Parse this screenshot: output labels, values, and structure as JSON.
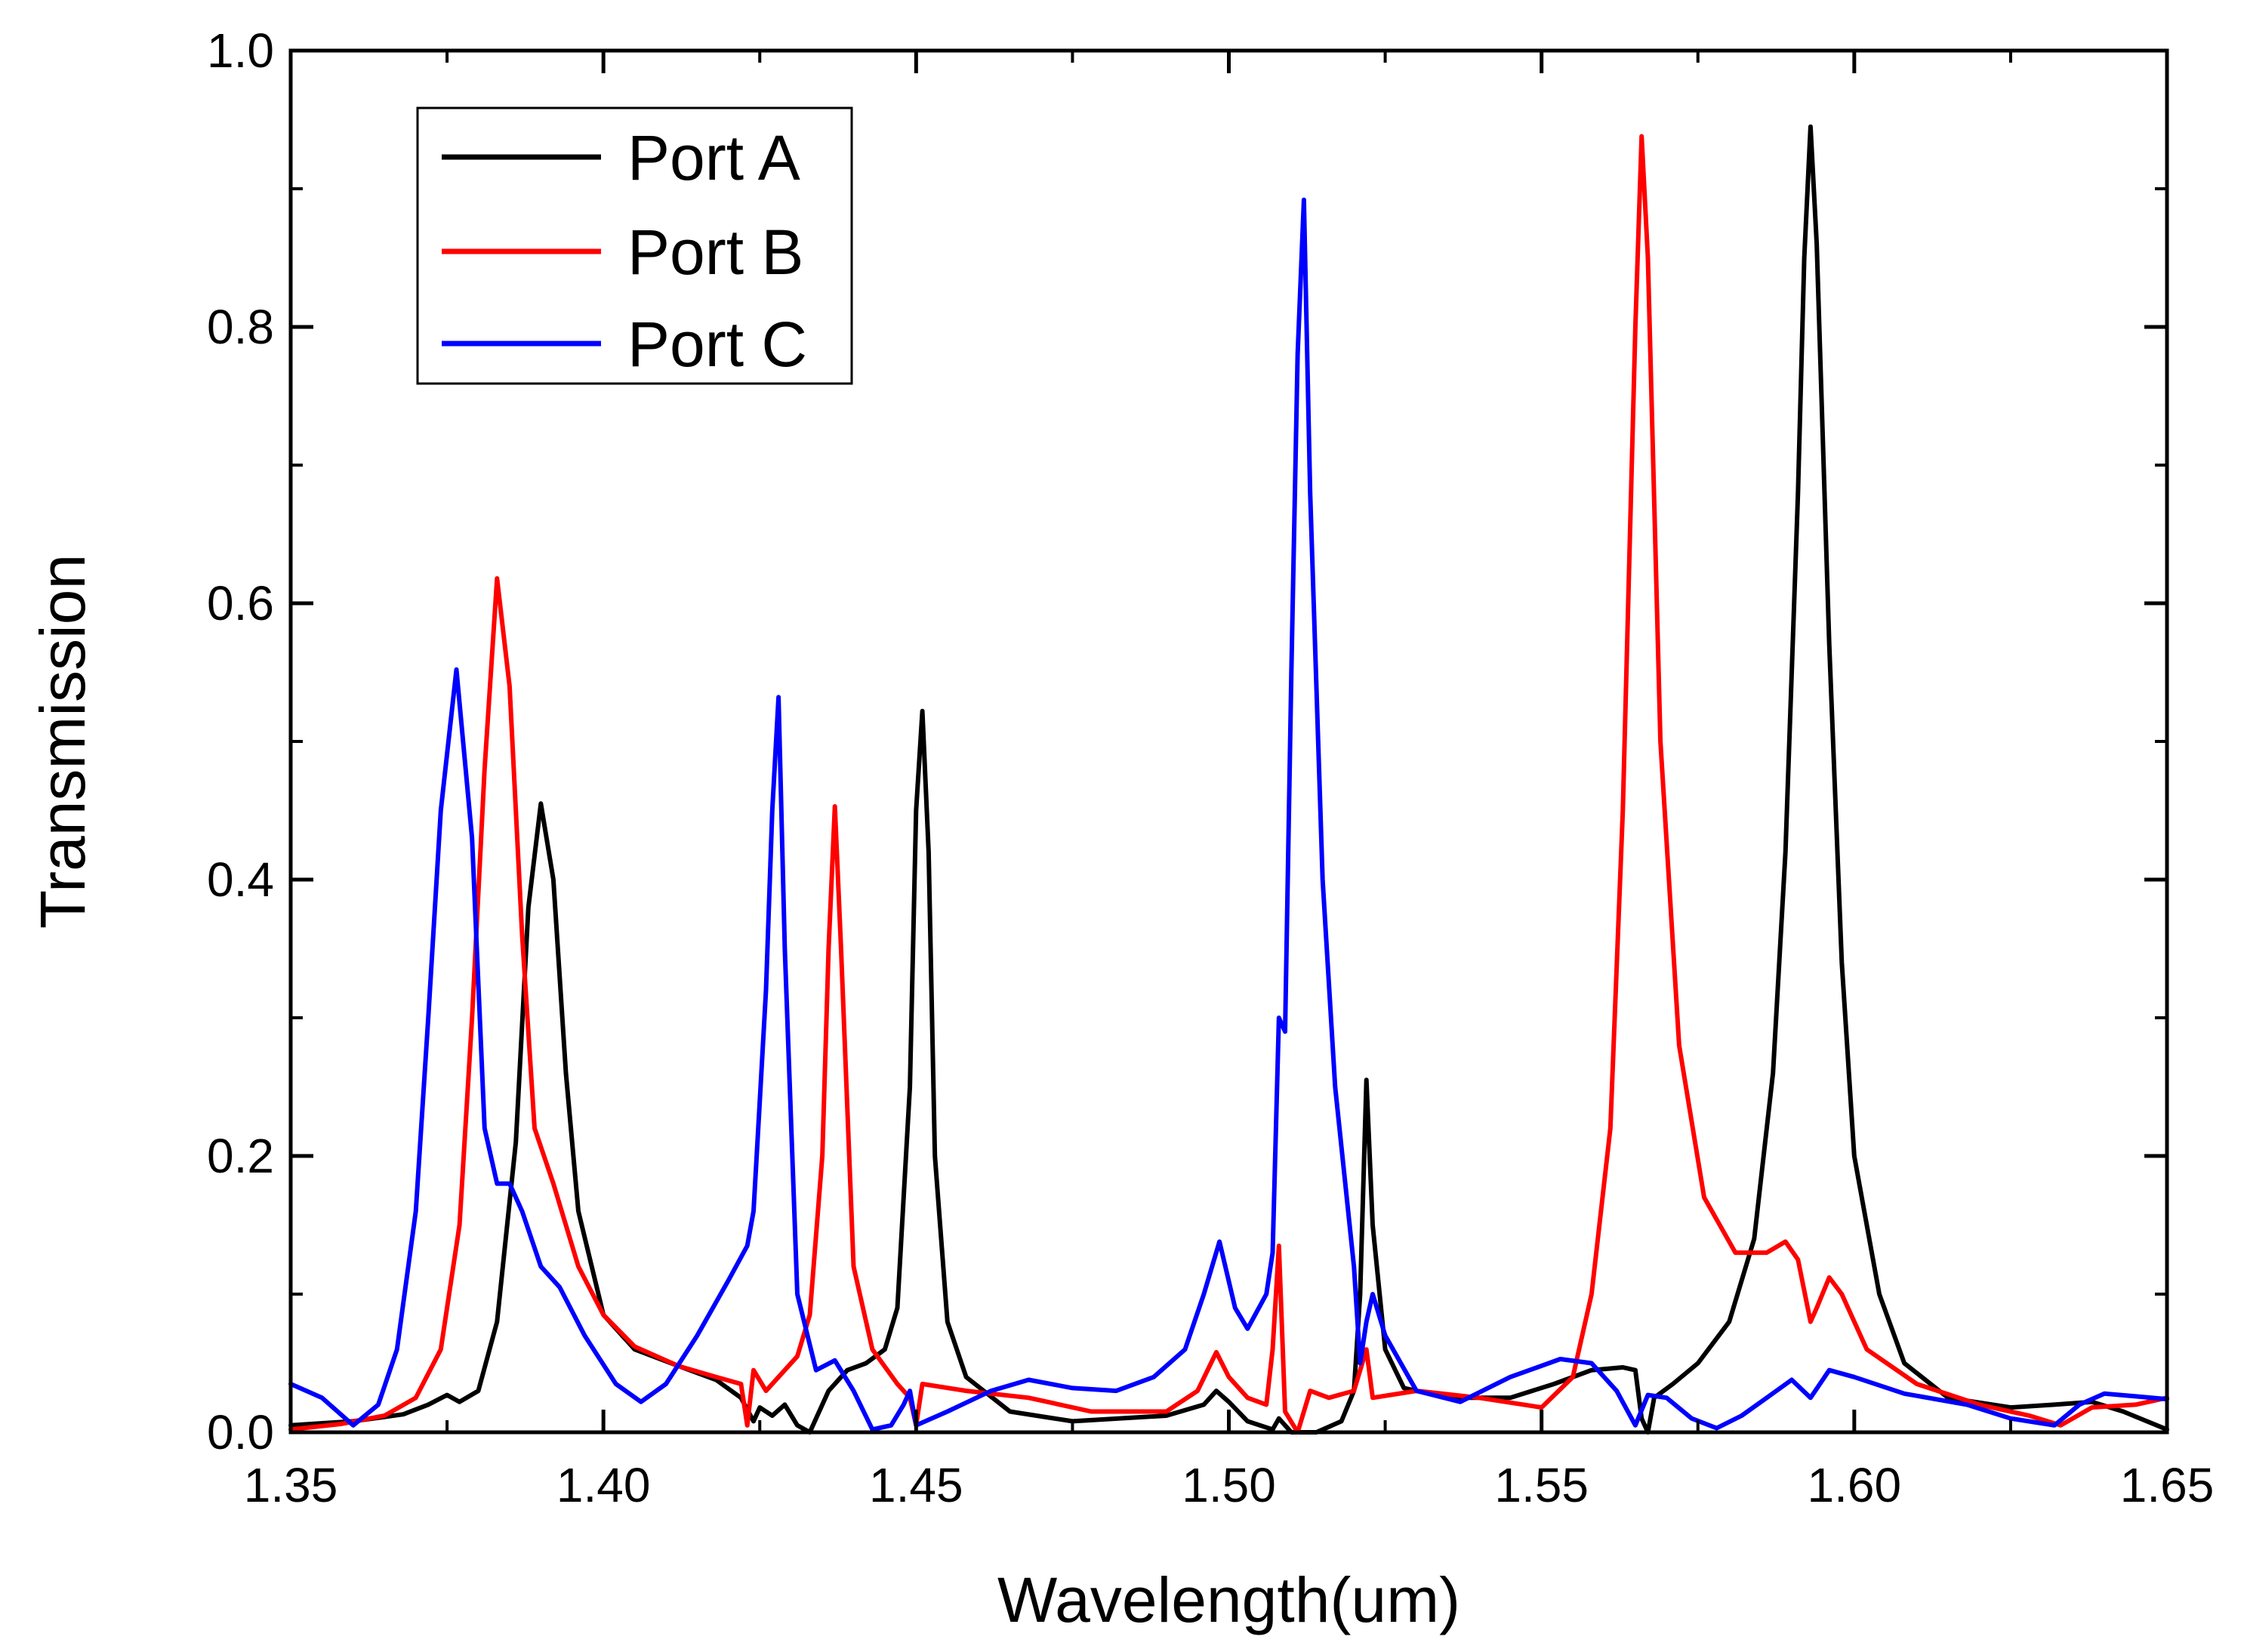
{
  "chart_data": {
    "type": "line",
    "title": "",
    "xlabel": "Wavelength(um)",
    "ylabel": "Transmission",
    "xlim": [
      1.35,
      1.65
    ],
    "ylim": [
      0.0,
      1.0
    ],
    "grid": false,
    "legend_position": "top-left",
    "x_ticks": [
      "1.35",
      "1.40",
      "1.45",
      "1.50",
      "1.55",
      "1.60",
      "1.65"
    ],
    "y_ticks": [
      "0.0",
      "0.2",
      "0.4",
      "0.6",
      "0.8",
      "1.0"
    ],
    "x_tick_values": [
      1.35,
      1.4,
      1.45,
      1.5,
      1.55,
      1.6,
      1.65
    ],
    "y_tick_values": [
      0.0,
      0.2,
      0.4,
      0.6,
      0.8,
      1.0
    ],
    "series": [
      {
        "name": "Port A",
        "color": "#000000",
        "points": [
          [
            1.35,
            0.005
          ],
          [
            1.36,
            0.008
          ],
          [
            1.368,
            0.013
          ],
          [
            1.372,
            0.02
          ],
          [
            1.375,
            0.027
          ],
          [
            1.377,
            0.022
          ],
          [
            1.38,
            0.03
          ],
          [
            1.383,
            0.08
          ],
          [
            1.386,
            0.21
          ],
          [
            1.388,
            0.38
          ],
          [
            1.39,
            0.455
          ],
          [
            1.392,
            0.4
          ],
          [
            1.394,
            0.26
          ],
          [
            1.396,
            0.16
          ],
          [
            1.4,
            0.085
          ],
          [
            1.405,
            0.06
          ],
          [
            1.412,
            0.048
          ],
          [
            1.418,
            0.038
          ],
          [
            1.422,
            0.025
          ],
          [
            1.424,
            0.008
          ],
          [
            1.425,
            0.018
          ],
          [
            1.427,
            0.012
          ],
          [
            1.429,
            0.02
          ],
          [
            1.431,
            0.005
          ],
          [
            1.433,
            0.0
          ],
          [
            1.436,
            0.03
          ],
          [
            1.439,
            0.045
          ],
          [
            1.442,
            0.05
          ],
          [
            1.445,
            0.06
          ],
          [
            1.447,
            0.09
          ],
          [
            1.449,
            0.25
          ],
          [
            1.45,
            0.45
          ],
          [
            1.451,
            0.522
          ],
          [
            1.452,
            0.42
          ],
          [
            1.453,
            0.2
          ],
          [
            1.455,
            0.08
          ],
          [
            1.458,
            0.04
          ],
          [
            1.465,
            0.015
          ],
          [
            1.475,
            0.008
          ],
          [
            1.49,
            0.012
          ],
          [
            1.496,
            0.02
          ],
          [
            1.498,
            0.03
          ],
          [
            1.5,
            0.022
          ],
          [
            1.503,
            0.008
          ],
          [
            1.507,
            0.002
          ],
          [
            1.508,
            0.01
          ],
          [
            1.51,
            0.0
          ],
          [
            1.514,
            0.0
          ],
          [
            1.518,
            0.008
          ],
          [
            1.52,
            0.03
          ],
          [
            1.521,
            0.1
          ],
          [
            1.522,
            0.255
          ],
          [
            1.523,
            0.15
          ],
          [
            1.525,
            0.06
          ],
          [
            1.528,
            0.032
          ],
          [
            1.535,
            0.025
          ],
          [
            1.545,
            0.025
          ],
          [
            1.552,
            0.035
          ],
          [
            1.558,
            0.045
          ],
          [
            1.563,
            0.047
          ],
          [
            1.565,
            0.045
          ],
          [
            1.566,
            0.01
          ],
          [
            1.567,
            0.0
          ],
          [
            1.568,
            0.025
          ],
          [
            1.571,
            0.035
          ],
          [
            1.575,
            0.05
          ],
          [
            1.58,
            0.08
          ],
          [
            1.584,
            0.14
          ],
          [
            1.587,
            0.26
          ],
          [
            1.589,
            0.42
          ],
          [
            1.591,
            0.68
          ],
          [
            1.592,
            0.85
          ],
          [
            1.593,
            0.945
          ],
          [
            1.594,
            0.86
          ],
          [
            1.596,
            0.57
          ],
          [
            1.598,
            0.34
          ],
          [
            1.6,
            0.2
          ],
          [
            1.604,
            0.1
          ],
          [
            1.608,
            0.05
          ],
          [
            1.615,
            0.025
          ],
          [
            1.625,
            0.018
          ],
          [
            1.632,
            0.02
          ],
          [
            1.638,
            0.022
          ],
          [
            1.643,
            0.015
          ],
          [
            1.65,
            0.002
          ]
        ]
      },
      {
        "name": "Port B",
        "color": "#ff0000",
        "points": [
          [
            1.35,
            0.002
          ],
          [
            1.358,
            0.006
          ],
          [
            1.365,
            0.012
          ],
          [
            1.37,
            0.025
          ],
          [
            1.374,
            0.06
          ],
          [
            1.377,
            0.15
          ],
          [
            1.379,
            0.3
          ],
          [
            1.381,
            0.48
          ],
          [
            1.383,
            0.618
          ],
          [
            1.385,
            0.54
          ],
          [
            1.387,
            0.36
          ],
          [
            1.389,
            0.22
          ],
          [
            1.392,
            0.18
          ],
          [
            1.396,
            0.12
          ],
          [
            1.4,
            0.085
          ],
          [
            1.405,
            0.062
          ],
          [
            1.412,
            0.048
          ],
          [
            1.418,
            0.04
          ],
          [
            1.422,
            0.035
          ],
          [
            1.423,
            0.005
          ],
          [
            1.424,
            0.045
          ],
          [
            1.426,
            0.03
          ],
          [
            1.428,
            0.04
          ],
          [
            1.431,
            0.055
          ],
          [
            1.433,
            0.085
          ],
          [
            1.435,
            0.2
          ],
          [
            1.436,
            0.35
          ],
          [
            1.437,
            0.453
          ],
          [
            1.438,
            0.35
          ],
          [
            1.44,
            0.12
          ],
          [
            1.443,
            0.06
          ],
          [
            1.447,
            0.035
          ],
          [
            1.449,
            0.025
          ],
          [
            1.45,
            0.005
          ],
          [
            1.451,
            0.035
          ],
          [
            1.458,
            0.03
          ],
          [
            1.468,
            0.025
          ],
          [
            1.478,
            0.015
          ],
          [
            1.49,
            0.015
          ],
          [
            1.495,
            0.03
          ],
          [
            1.498,
            0.058
          ],
          [
            1.5,
            0.04
          ],
          [
            1.503,
            0.025
          ],
          [
            1.506,
            0.02
          ],
          [
            1.507,
            0.06
          ],
          [
            1.508,
            0.135
          ],
          [
            1.509,
            0.015
          ],
          [
            1.511,
            0.0
          ],
          [
            1.513,
            0.03
          ],
          [
            1.516,
            0.025
          ],
          [
            1.52,
            0.03
          ],
          [
            1.522,
            0.06
          ],
          [
            1.523,
            0.025
          ],
          [
            1.53,
            0.03
          ],
          [
            1.54,
            0.025
          ],
          [
            1.55,
            0.018
          ],
          [
            1.555,
            0.04
          ],
          [
            1.558,
            0.1
          ],
          [
            1.561,
            0.22
          ],
          [
            1.563,
            0.45
          ],
          [
            1.565,
            0.8
          ],
          [
            1.566,
            0.938
          ],
          [
            1.567,
            0.85
          ],
          [
            1.569,
            0.5
          ],
          [
            1.572,
            0.28
          ],
          [
            1.576,
            0.17
          ],
          [
            1.581,
            0.13
          ],
          [
            1.586,
            0.13
          ],
          [
            1.589,
            0.138
          ],
          [
            1.591,
            0.125
          ],
          [
            1.593,
            0.08
          ],
          [
            1.594,
            0.09
          ],
          [
            1.596,
            0.112
          ],
          [
            1.598,
            0.1
          ],
          [
            1.602,
            0.06
          ],
          [
            1.61,
            0.035
          ],
          [
            1.62,
            0.02
          ],
          [
            1.628,
            0.012
          ],
          [
            1.633,
            0.005
          ],
          [
            1.638,
            0.018
          ],
          [
            1.645,
            0.02
          ],
          [
            1.65,
            0.025
          ]
        ]
      },
      {
        "name": "Port C",
        "color": "#0000ff",
        "points": [
          [
            1.35,
            0.035
          ],
          [
            1.355,
            0.025
          ],
          [
            1.36,
            0.005
          ],
          [
            1.364,
            0.02
          ],
          [
            1.367,
            0.06
          ],
          [
            1.37,
            0.16
          ],
          [
            1.372,
            0.3
          ],
          [
            1.374,
            0.45
          ],
          [
            1.3765,
            0.552
          ],
          [
            1.379,
            0.43
          ],
          [
            1.381,
            0.22
          ],
          [
            1.383,
            0.18
          ],
          [
            1.385,
            0.18
          ],
          [
            1.387,
            0.16
          ],
          [
            1.39,
            0.12
          ],
          [
            1.393,
            0.105
          ],
          [
            1.397,
            0.07
          ],
          [
            1.402,
            0.035
          ],
          [
            1.406,
            0.022
          ],
          [
            1.41,
            0.035
          ],
          [
            1.415,
            0.07
          ],
          [
            1.42,
            0.11
          ],
          [
            1.423,
            0.135
          ],
          [
            1.424,
            0.16
          ],
          [
            1.425,
            0.24
          ],
          [
            1.426,
            0.32
          ],
          [
            1.427,
            0.45
          ],
          [
            1.428,
            0.532
          ],
          [
            1.429,
            0.35
          ],
          [
            1.431,
            0.1
          ],
          [
            1.434,
            0.045
          ],
          [
            1.437,
            0.052
          ],
          [
            1.44,
            0.03
          ],
          [
            1.443,
            0.002
          ],
          [
            1.446,
            0.005
          ],
          [
            1.448,
            0.02
          ],
          [
            1.449,
            0.03
          ],
          [
            1.45,
            0.005
          ],
          [
            1.455,
            0.015
          ],
          [
            1.462,
            0.03
          ],
          [
            1.468,
            0.038
          ],
          [
            1.475,
            0.032
          ],
          [
            1.482,
            0.03
          ],
          [
            1.488,
            0.04
          ],
          [
            1.493,
            0.06
          ],
          [
            1.496,
            0.1
          ],
          [
            1.4985,
            0.138
          ],
          [
            1.501,
            0.09
          ],
          [
            1.503,
            0.075
          ],
          [
            1.506,
            0.1
          ],
          [
            1.507,
            0.13
          ],
          [
            1.508,
            0.3
          ],
          [
            1.509,
            0.29
          ],
          [
            1.51,
            0.55
          ],
          [
            1.511,
            0.78
          ],
          [
            1.512,
            0.892
          ],
          [
            1.513,
            0.68
          ],
          [
            1.515,
            0.4
          ],
          [
            1.517,
            0.25
          ],
          [
            1.52,
            0.12
          ],
          [
            1.521,
            0.05
          ],
          [
            1.522,
            0.08
          ],
          [
            1.523,
            0.1
          ],
          [
            1.525,
            0.07
          ],
          [
            1.53,
            0.03
          ],
          [
            1.537,
            0.022
          ],
          [
            1.545,
            0.04
          ],
          [
            1.553,
            0.053
          ],
          [
            1.558,
            0.05
          ],
          [
            1.562,
            0.03
          ],
          [
            1.565,
            0.005
          ],
          [
            1.567,
            0.027
          ],
          [
            1.57,
            0.025
          ],
          [
            1.574,
            0.01
          ],
          [
            1.578,
            0.003
          ],
          [
            1.582,
            0.012
          ],
          [
            1.586,
            0.025
          ],
          [
            1.59,
            0.038
          ],
          [
            1.593,
            0.025
          ],
          [
            1.596,
            0.045
          ],
          [
            1.6,
            0.04
          ],
          [
            1.608,
            0.028
          ],
          [
            1.618,
            0.02
          ],
          [
            1.625,
            0.01
          ],
          [
            1.632,
            0.005
          ],
          [
            1.636,
            0.02
          ],
          [
            1.64,
            0.028
          ],
          [
            1.645,
            0.026
          ],
          [
            1.65,
            0.024
          ]
        ]
      }
    ]
  }
}
